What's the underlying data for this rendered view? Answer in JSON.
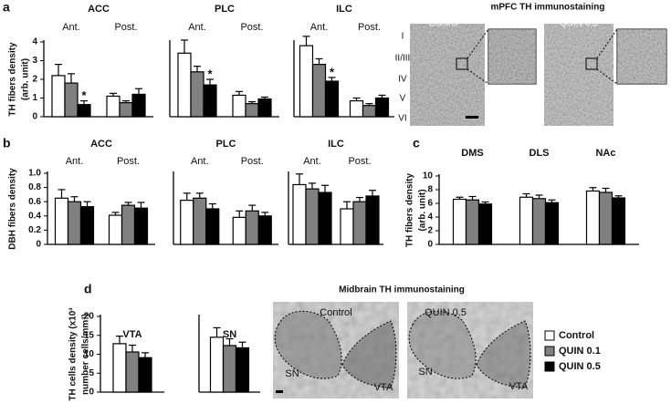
{
  "panels": [
    "a",
    "b",
    "c",
    "d"
  ],
  "chart_data": [
    {
      "type": "bar",
      "title": "ACC",
      "categories": [
        "Ant.",
        "Post."
      ],
      "ylabel": [
        "TH fibers density",
        "(arb. unit)"
      ],
      "ylim": [
        0,
        4
      ],
      "yticks": [
        0,
        1,
        2,
        3,
        4
      ],
      "series": [
        {
          "color": "#ffffff",
          "values": [
            2.2,
            1.1
          ],
          "errors": [
            0.6,
            0.15
          ]
        },
        {
          "color": "#808080",
          "values": [
            1.8,
            0.75
          ],
          "errors": [
            0.5,
            0.1
          ]
        },
        {
          "color": "#000000",
          "values": [
            0.65,
            1.2
          ],
          "errors": [
            0.2,
            0.3
          ],
          "significance": [
            "*",
            null
          ]
        }
      ]
    },
    {
      "type": "bar",
      "title": "PLC",
      "categories": [
        "Ant.",
        "Post."
      ],
      "ylim": [
        0,
        4
      ],
      "series": [
        {
          "color": "#ffffff",
          "values": [
            3.4,
            1.15
          ],
          "errors": [
            0.7,
            0.2
          ]
        },
        {
          "color": "#808080",
          "values": [
            2.4,
            0.7
          ],
          "errors": [
            0.3,
            0.1
          ]
        },
        {
          "color": "#000000",
          "values": [
            1.7,
            0.95
          ],
          "errors": [
            0.3,
            0.1
          ],
          "significance": [
            "*",
            null
          ]
        }
      ]
    },
    {
      "type": "bar",
      "title": "ILC",
      "categories": [
        "Ant.",
        "Post."
      ],
      "ylim": [
        0,
        4
      ],
      "series": [
        {
          "color": "#ffffff",
          "values": [
            3.8,
            0.85
          ],
          "errors": [
            0.5,
            0.15
          ]
        },
        {
          "color": "#808080",
          "values": [
            2.8,
            0.6
          ],
          "errors": [
            0.3,
            0.1
          ]
        },
        {
          "color": "#000000",
          "values": [
            1.9,
            1.0
          ],
          "errors": [
            0.2,
            0.15
          ],
          "significance": [
            "*",
            null
          ]
        }
      ]
    },
    {
      "type": "bar",
      "title": "ACC",
      "categories": [
        "Ant.",
        "Post."
      ],
      "ylabel": [
        "DBH fibers density"
      ],
      "ylim": [
        0,
        1
      ],
      "yticks": [
        0,
        0.2,
        0.4,
        0.6,
        0.8,
        {
          "value": 1,
          "label": "1.0"
        }
      ],
      "series": [
        {
          "color": "#ffffff",
          "values": [
            0.65,
            0.41
          ],
          "errors": [
            0.12,
            0.04
          ]
        },
        {
          "color": "#808080",
          "values": [
            0.6,
            0.55
          ],
          "errors": [
            0.07,
            0.04
          ]
        },
        {
          "color": "#000000",
          "values": [
            0.53,
            0.51
          ],
          "errors": [
            0.07,
            0.08
          ]
        }
      ]
    },
    {
      "type": "bar",
      "title": "PLC",
      "categories": [
        "Ant.",
        "Post."
      ],
      "ylim": [
        0,
        1
      ],
      "series": [
        {
          "color": "#ffffff",
          "values": [
            0.62,
            0.38
          ],
          "errors": [
            0.1,
            0.09
          ]
        },
        {
          "color": "#808080",
          "values": [
            0.65,
            0.47
          ],
          "errors": [
            0.07,
            0.08
          ]
        },
        {
          "color": "#000000",
          "values": [
            0.5,
            0.4
          ],
          "errors": [
            0.07,
            0.05
          ]
        }
      ]
    },
    {
      "type": "bar",
      "title": "ILC",
      "categories": [
        "Ant.",
        "Post."
      ],
      "ylim": [
        0,
        1
      ],
      "series": [
        {
          "color": "#ffffff",
          "values": [
            0.84,
            0.5
          ],
          "errors": [
            0.15,
            0.1
          ]
        },
        {
          "color": "#808080",
          "values": [
            0.78,
            0.6
          ],
          "errors": [
            0.08,
            0.06
          ]
        },
        {
          "color": "#000000",
          "values": [
            0.73,
            0.68
          ],
          "errors": [
            0.1,
            0.08
          ]
        }
      ]
    },
    {
      "type": "bar",
      "categories": [
        "DMS",
        "DLS",
        "NAc"
      ],
      "ylabel": [
        "TH fibers density",
        "(arb. unit)"
      ],
      "ylim": [
        0,
        10
      ],
      "yticks": [
        0,
        2,
        4,
        6,
        8,
        10
      ],
      "series": [
        {
          "color": "#ffffff",
          "values": [
            6.6,
            6.9,
            7.8
          ],
          "errors": [
            0.3,
            0.5,
            0.5
          ]
        },
        {
          "color": "#808080",
          "values": [
            6.5,
            6.7,
            7.6
          ],
          "errors": [
            0.5,
            0.5,
            0.6
          ]
        },
        {
          "color": "#000000",
          "values": [
            5.9,
            6.1,
            6.8
          ],
          "errors": [
            0.3,
            0.4,
            0.3
          ]
        }
      ]
    },
    {
      "type": "bar",
      "title": "VTA",
      "categories": [
        null
      ],
      "ylabel": [
        "TH cells density (x10³",
        "number cells/mm³)"
      ],
      "ylim": [
        0,
        20
      ],
      "yticks": [
        0,
        5,
        10,
        15,
        20
      ],
      "series": [
        {
          "color": "#ffffff",
          "values": [
            12.8
          ],
          "errors": [
            2
          ]
        },
        {
          "color": "#808080",
          "values": [
            10.6
          ],
          "errors": [
            1.8
          ]
        },
        {
          "color": "#000000",
          "values": [
            9.1
          ],
          "errors": [
            1.3
          ]
        }
      ]
    },
    {
      "type": "bar",
      "title": "SN",
      "categories": [
        null
      ],
      "ylim": [
        0,
        20
      ],
      "series": [
        {
          "name": "Control",
          "color": "#ffffff",
          "values": [
            14.5
          ],
          "errors": [
            2.5
          ]
        },
        {
          "name": "QUIN 0.1",
          "color": "#808080",
          "values": [
            12.3
          ],
          "errors": [
            1.8
          ]
        },
        {
          "name": "QUIN 0.5",
          "color": "#000000",
          "values": [
            11.7
          ],
          "errors": [
            1.5
          ]
        }
      ]
    }
  ],
  "images": {
    "mpfc": {
      "title": "mPFC TH immunostaining",
      "labels": [
        "Control",
        "QUIN 0.5"
      ],
      "layers": [
        "I",
        "II/III",
        "IV",
        "V",
        "VI"
      ]
    },
    "midbrain": {
      "title": "Midbrain TH immunostaining",
      "labels": [
        "Control",
        "QUIN 0.5"
      ],
      "regions": [
        "SN",
        "VTA",
        "SN",
        "VTA"
      ]
    }
  }
}
